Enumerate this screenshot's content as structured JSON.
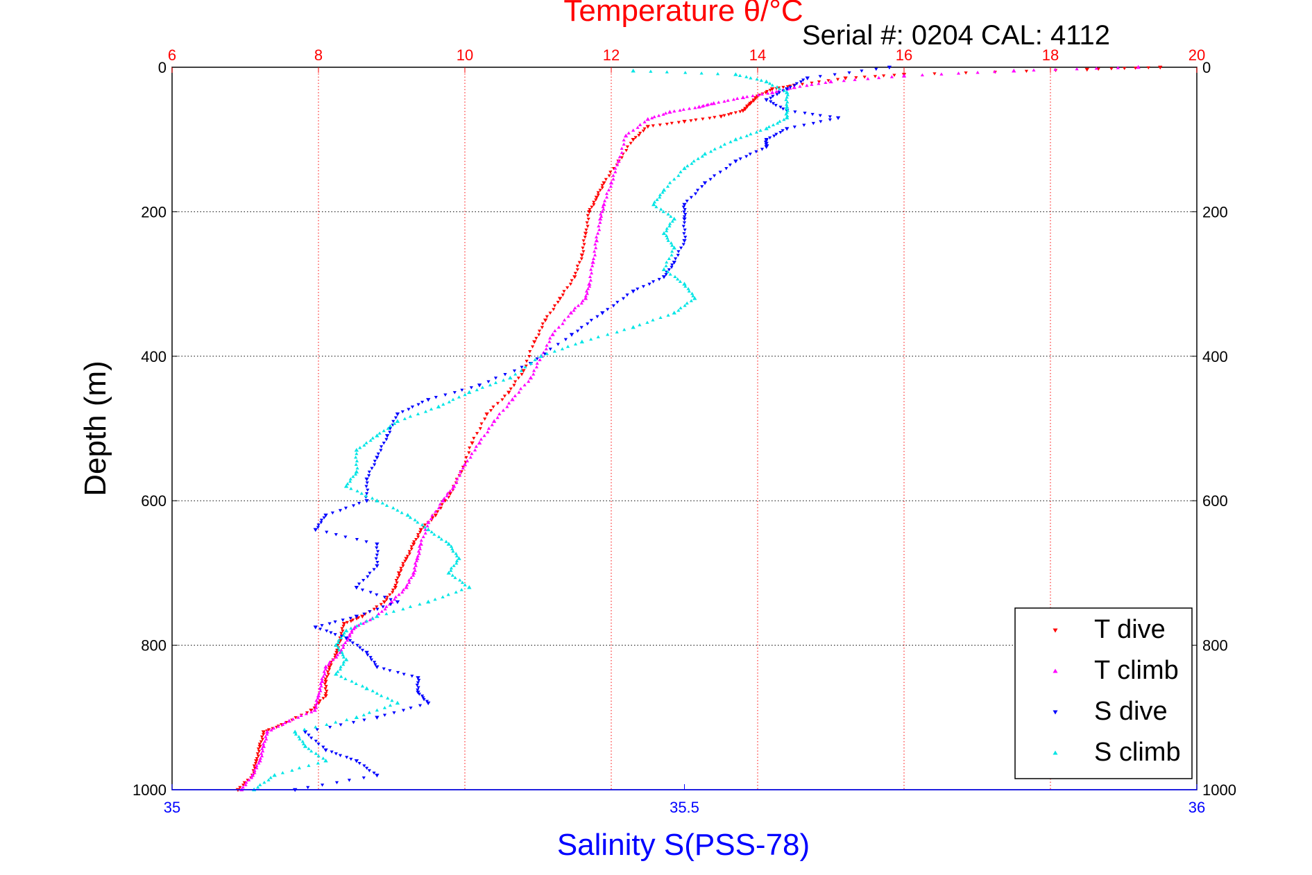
{
  "chart_data": {
    "type": "scatter",
    "title": "Temperature θ/°C",
    "subtitle": "Serial #: 0204  CAL: 4112",
    "ylabel": "Depth (m)",
    "xlabel": "Salinity S(PSS-78)",
    "ylim": [
      0,
      1000
    ],
    "y_reversed": true,
    "yticks": [
      0,
      200,
      400,
      600,
      800,
      1000
    ],
    "ytick_labels": [
      "0",
      "200",
      "400",
      "600",
      "800",
      "1000"
    ],
    "temperature_axis": {
      "position": "top",
      "range": [
        6,
        20
      ],
      "ticks": [
        6,
        8,
        10,
        12,
        14,
        16,
        18,
        20
      ],
      "tick_labels": [
        "6",
        "8",
        "10",
        "12",
        "14",
        "16",
        "18",
        "20"
      ]
    },
    "salinity_axis": {
      "position": "bottom",
      "range": [
        35,
        36
      ],
      "ticks": [
        35,
        35.5,
        36
      ],
      "tick_labels": [
        "35",
        "35.5",
        "36"
      ]
    },
    "grid": true,
    "legend_position": "bottom-right",
    "series": [
      {
        "name": "T dive",
        "axis": "temperature",
        "marker": "triangle-down",
        "color": "#ff0000",
        "points": [
          [
            19.5,
            0
          ],
          [
            18.5,
            3
          ],
          [
            16,
            10
          ],
          [
            15.2,
            15
          ],
          [
            14.5,
            25
          ],
          [
            14.2,
            30
          ],
          [
            14,
            40
          ],
          [
            13.9,
            50
          ],
          [
            13.8,
            60
          ],
          [
            13.5,
            68
          ],
          [
            13,
            75
          ],
          [
            12.5,
            82
          ],
          [
            12.3,
            100
          ],
          [
            12.1,
            130
          ],
          [
            11.9,
            160
          ],
          [
            11.8,
            180
          ],
          [
            11.7,
            200
          ],
          [
            11.65,
            230
          ],
          [
            11.6,
            260
          ],
          [
            11.5,
            290
          ],
          [
            11.3,
            320
          ],
          [
            11.1,
            350
          ],
          [
            10.95,
            380
          ],
          [
            10.8,
            420
          ],
          [
            10.6,
            450
          ],
          [
            10.3,
            480
          ],
          [
            10.1,
            520
          ],
          [
            9.95,
            560
          ],
          [
            9.8,
            590
          ],
          [
            9.6,
            620
          ],
          [
            9.4,
            640
          ],
          [
            9.3,
            660
          ],
          [
            9.2,
            680
          ],
          [
            9.1,
            700
          ],
          [
            9.05,
            720
          ],
          [
            8.9,
            740
          ],
          [
            8.6,
            760
          ],
          [
            8.35,
            770
          ],
          [
            8.3,
            790
          ],
          [
            8.25,
            810
          ],
          [
            8.15,
            830
          ],
          [
            8.1,
            850
          ],
          [
            8.1,
            870
          ],
          [
            7.9,
            890
          ],
          [
            7.5,
            910
          ],
          [
            7.25,
            920
          ],
          [
            7.2,
            940
          ],
          [
            7.15,
            960
          ],
          [
            7.1,
            980
          ],
          [
            6.9,
            1000
          ]
        ]
      },
      {
        "name": "T climb",
        "axis": "temperature",
        "marker": "triangle-up",
        "color": "#ff00ff",
        "points": [
          [
            19.2,
            0
          ],
          [
            17.5,
            5
          ],
          [
            16,
            12
          ],
          [
            15,
            20
          ],
          [
            14.5,
            28
          ],
          [
            14.2,
            35
          ],
          [
            13.8,
            42
          ],
          [
            13.4,
            50
          ],
          [
            13.2,
            55
          ],
          [
            12.8,
            62
          ],
          [
            12.5,
            72
          ],
          [
            12.2,
            95
          ],
          [
            12.1,
            130
          ],
          [
            12,
            160
          ],
          [
            11.9,
            190
          ],
          [
            11.85,
            210
          ],
          [
            11.8,
            240
          ],
          [
            11.75,
            270
          ],
          [
            11.7,
            300
          ],
          [
            11.65,
            320
          ],
          [
            11.45,
            340
          ],
          [
            11.2,
            370
          ],
          [
            11.05,
            400
          ],
          [
            10.9,
            430
          ],
          [
            10.65,
            460
          ],
          [
            10.4,
            490
          ],
          [
            10.2,
            520
          ],
          [
            10,
            550
          ],
          [
            9.85,
            580
          ],
          [
            9.7,
            600
          ],
          [
            9.5,
            630
          ],
          [
            9.4,
            660
          ],
          [
            9.35,
            680
          ],
          [
            9.3,
            700
          ],
          [
            9.2,
            720
          ],
          [
            9.0,
            740
          ],
          [
            8.8,
            760
          ],
          [
            8.5,
            775
          ],
          [
            8.4,
            790
          ],
          [
            8.3,
            810
          ],
          [
            8.1,
            830
          ],
          [
            8.05,
            850
          ],
          [
            8,
            870
          ],
          [
            7.95,
            890
          ],
          [
            7.6,
            905
          ],
          [
            7.3,
            920
          ],
          [
            7.25,
            940
          ],
          [
            7.2,
            960
          ],
          [
            7.1,
            980
          ],
          [
            6.95,
            1000
          ]
        ]
      },
      {
        "name": "S dive",
        "axis": "salinity",
        "marker": "triangle-down",
        "color": "#0000ff",
        "points": [
          [
            35.7,
            0
          ],
          [
            35.62,
            15
          ],
          [
            35.6,
            30
          ],
          [
            35.58,
            45
          ],
          [
            35.6,
            60
          ],
          [
            35.65,
            70
          ],
          [
            35.6,
            85
          ],
          [
            35.58,
            100
          ],
          [
            35.58,
            110
          ],
          [
            35.55,
            130
          ],
          [
            35.52,
            160
          ],
          [
            35.5,
            190
          ],
          [
            35.5,
            210
          ],
          [
            35.5,
            240
          ],
          [
            35.49,
            270
          ],
          [
            35.48,
            290
          ],
          [
            35.45,
            310
          ],
          [
            35.42,
            340
          ],
          [
            35.39,
            370
          ],
          [
            35.35,
            410
          ],
          [
            35.3,
            440
          ],
          [
            35.25,
            460
          ],
          [
            35.22,
            480
          ],
          [
            35.21,
            510
          ],
          [
            35.2,
            540
          ],
          [
            35.19,
            570
          ],
          [
            35.19,
            600
          ],
          [
            35.15,
            620
          ],
          [
            35.14,
            640
          ],
          [
            35.2,
            660
          ],
          [
            35.2,
            690
          ],
          [
            35.18,
            720
          ],
          [
            35.22,
            740
          ],
          [
            35.18,
            760
          ],
          [
            35.14,
            775
          ],
          [
            35.17,
            790
          ],
          [
            35.19,
            810
          ],
          [
            35.2,
            830
          ],
          [
            35.24,
            845
          ],
          [
            35.24,
            865
          ],
          [
            35.25,
            880
          ],
          [
            35.2,
            900
          ],
          [
            35.13,
            920
          ],
          [
            35.15,
            945
          ],
          [
            35.18,
            960
          ],
          [
            35.2,
            980
          ],
          [
            35.12,
            1000
          ]
        ]
      },
      {
        "name": "S climb",
        "axis": "salinity",
        "marker": "triangle-up",
        "color": "#00e5e5",
        "points": [
          [
            35.45,
            5
          ],
          [
            35.55,
            10
          ],
          [
            35.58,
            20
          ],
          [
            35.6,
            35
          ],
          [
            35.6,
            55
          ],
          [
            35.6,
            70
          ],
          [
            35.58,
            85
          ],
          [
            35.55,
            100
          ],
          [
            35.52,
            120
          ],
          [
            35.5,
            140
          ],
          [
            35.48,
            170
          ],
          [
            35.47,
            190
          ],
          [
            35.49,
            210
          ],
          [
            35.48,
            230
          ],
          [
            35.49,
            250
          ],
          [
            35.48,
            280
          ],
          [
            35.5,
            300
          ],
          [
            35.51,
            320
          ],
          [
            35.49,
            340
          ],
          [
            35.45,
            360
          ],
          [
            35.4,
            380
          ],
          [
            35.36,
            400
          ],
          [
            35.33,
            430
          ],
          [
            35.29,
            450
          ],
          [
            35.26,
            470
          ],
          [
            35.22,
            490
          ],
          [
            35.2,
            510
          ],
          [
            35.18,
            530
          ],
          [
            35.18,
            560
          ],
          [
            35.17,
            580
          ],
          [
            35.2,
            600
          ],
          [
            35.23,
            620
          ],
          [
            35.25,
            640
          ],
          [
            35.27,
            660
          ],
          [
            35.28,
            680
          ],
          [
            35.27,
            700
          ],
          [
            35.29,
            720
          ],
          [
            35.25,
            740
          ],
          [
            35.2,
            760
          ],
          [
            35.17,
            780
          ],
          [
            35.16,
            800
          ],
          [
            35.17,
            820
          ],
          [
            35.16,
            840
          ],
          [
            35.19,
            860
          ],
          [
            35.22,
            880
          ],
          [
            35.18,
            900
          ],
          [
            35.12,
            920
          ],
          [
            35.13,
            940
          ],
          [
            35.15,
            960
          ],
          [
            35.1,
            980
          ],
          [
            35.08,
            1000
          ]
        ]
      }
    ]
  }
}
